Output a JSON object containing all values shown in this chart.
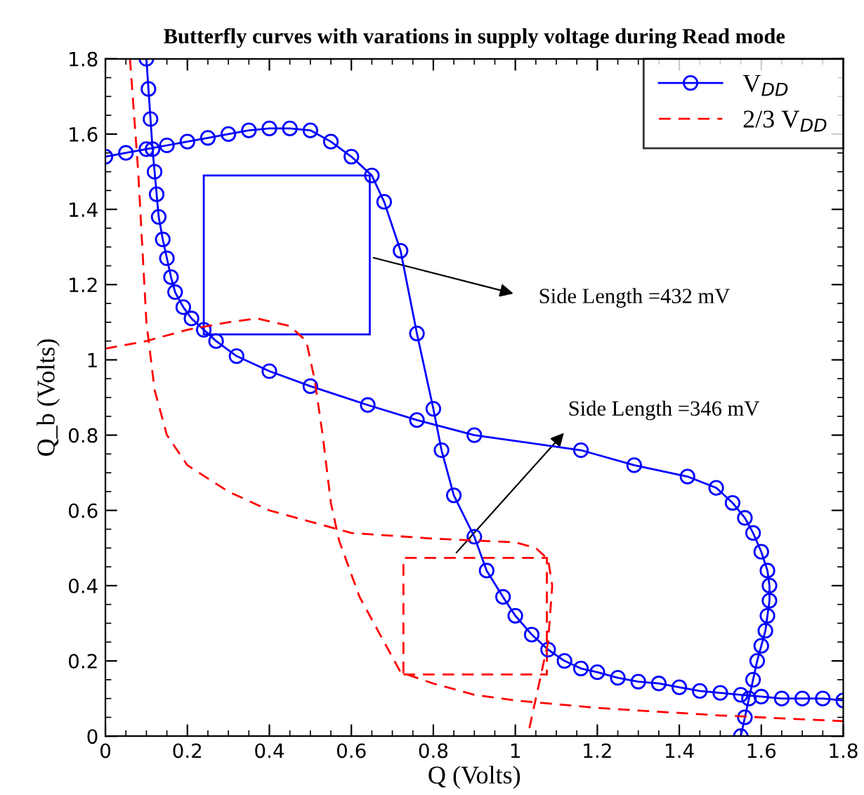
{
  "chart_data": {
    "type": "line",
    "title": "Butterfly curves with varations in supply voltage during Read mode",
    "xlabel": "Q (Volts)",
    "ylabel": "Q_b (Volts)",
    "xlim": [
      0,
      1.8
    ],
    "ylim": [
      0,
      1.8
    ],
    "xticks": [
      0,
      0.2,
      0.4,
      0.6,
      0.8,
      1,
      1.2,
      1.4,
      1.6,
      1.8
    ],
    "yticks": [
      0,
      0.2,
      0.4,
      0.6,
      0.8,
      1,
      1.2,
      1.4,
      1.6,
      1.8
    ],
    "grid": false,
    "legend": "top right",
    "series": [
      {
        "name": "V$_{DD}$",
        "color": "#0000ff",
        "marker": "circle",
        "line_style": "solid",
        "x": [
          0,
          0.05,
          0.1,
          0.15,
          0.2,
          0.25,
          0.3,
          0.35,
          0.4,
          0.45,
          0.5,
          0.55,
          0.6,
          0.65,
          0.68,
          0.72,
          0.76,
          0.8,
          0.82,
          0.85,
          0.9,
          0.93,
          0.97,
          1.0,
          1.04,
          1.08,
          1.12,
          1.16,
          1.2,
          1.25,
          1.3,
          1.35,
          1.4,
          1.45,
          1.5,
          1.55,
          1.6,
          1.65,
          1.7,
          1.75,
          1.8
        ],
        "values": [
          1.54,
          1.55,
          1.56,
          1.57,
          1.58,
          1.59,
          1.6,
          1.61,
          1.615,
          1.615,
          1.61,
          1.58,
          1.54,
          1.49,
          1.42,
          1.29,
          1.07,
          0.87,
          0.76,
          0.64,
          0.53,
          0.44,
          0.37,
          0.32,
          0.27,
          0.23,
          0.2,
          0.18,
          0.17,
          0.155,
          0.145,
          0.14,
          0.13,
          0.12,
          0.115,
          0.11,
          0.105,
          0.1,
          0.1,
          0.1,
          0.095
        ]
      },
      {
        "color": "#0000ff",
        "marker": "circle",
        "line_style": "solid",
        "x": [
          0.1,
          0.105,
          0.11,
          0.115,
          0.12,
          0.125,
          0.13,
          0.14,
          0.15,
          0.16,
          0.17,
          0.19,
          0.21,
          0.24,
          0.27,
          0.32,
          0.4,
          0.5,
          0.64,
          0.76,
          0.9,
          1.16,
          1.29,
          1.42,
          1.49,
          1.53,
          1.56,
          1.58,
          1.6,
          1.615,
          1.62,
          1.62,
          1.615,
          1.61,
          1.6,
          1.59,
          1.58,
          1.57,
          1.56,
          1.55
        ],
        "values": [
          1.8,
          1.72,
          1.64,
          1.56,
          1.5,
          1.44,
          1.38,
          1.32,
          1.27,
          1.22,
          1.18,
          1.14,
          1.11,
          1.08,
          1.05,
          1.01,
          0.97,
          0.93,
          0.88,
          0.84,
          0.8,
          0.76,
          0.72,
          0.69,
          0.66,
          0.62,
          0.58,
          0.54,
          0.49,
          0.44,
          0.4,
          0.36,
          0.32,
          0.28,
          0.24,
          0.2,
          0.15,
          0.1,
          0.05,
          0.0
        ]
      },
      {
        "name": "2/3 V$_{DD}$",
        "color": "#ff0000",
        "marker": "none",
        "line_style": "dashed",
        "x": [
          0.06,
          0.07,
          0.08,
          0.09,
          0.1,
          0.12,
          0.15,
          0.2,
          0.3,
          0.4,
          0.5,
          0.55,
          0.6,
          0.8,
          1.0,
          1.05,
          1.08,
          1.09,
          1.08,
          1.06,
          1.03
        ],
        "values": [
          1.8,
          1.65,
          1.5,
          1.3,
          1.1,
          0.92,
          0.8,
          0.72,
          0.65,
          0.6,
          0.57,
          0.555,
          0.54,
          0.525,
          0.515,
          0.5,
          0.47,
          0.4,
          0.25,
          0.15,
          0.0
        ]
      },
      {
        "color": "#ff0000",
        "marker": "none",
        "line_style": "dashed",
        "x": [
          0,
          0.1,
          0.2,
          0.3,
          0.37,
          0.45,
          0.49,
          0.51,
          0.53,
          0.55,
          0.57,
          0.62,
          0.68,
          0.72,
          0.8,
          0.9,
          1.0,
          1.2,
          1.5,
          1.8
        ],
        "values": [
          1.03,
          1.05,
          1.08,
          1.1,
          1.11,
          1.09,
          1.05,
          0.95,
          0.8,
          0.62,
          0.52,
          0.37,
          0.25,
          0.17,
          0.14,
          0.11,
          0.095,
          0.075,
          0.055,
          0.04
        ]
      }
    ],
    "annotations": [
      "Side Length =432 mV",
      "Side Length =346 mV"
    ]
  }
}
